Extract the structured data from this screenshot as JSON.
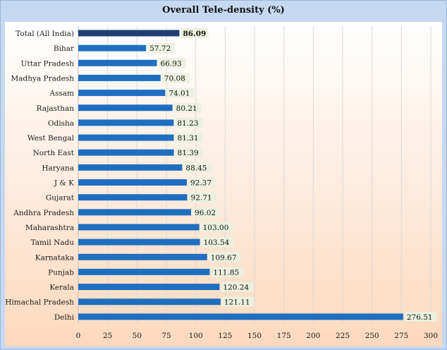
{
  "chart_data": {
    "type": "bar",
    "orientation": "horizontal",
    "title": "Overall Tele-density (%)",
    "xlabel": "",
    "ylabel": "",
    "xlim": [
      0,
      300
    ],
    "xticks": [
      "0",
      "25",
      "50",
      "75",
      "100",
      "125",
      "150",
      "175",
      "200",
      "225",
      "250",
      "275",
      "300"
    ],
    "grid": "vertical",
    "legend": "none",
    "categories": [
      "Total (All India)",
      "Bihar",
      "Uttar Pradesh",
      "Madhya Pradesh",
      "Assam",
      "Rajasthan",
      "Odisha",
      "West Bengal",
      "North East",
      "Haryana",
      "J & K",
      "Gujarat",
      "Andhra Pradesh",
      "Maharashtra",
      "Tamil Nadu",
      "Karnataka",
      "Punjab",
      "Kerala",
      "Himachal Pradesh",
      "Delhi"
    ],
    "values": [
      86.09,
      57.72,
      66.93,
      70.08,
      74.01,
      80.21,
      81.23,
      81.31,
      81.39,
      88.45,
      92.37,
      92.71,
      96.02,
      103.0,
      103.54,
      109.67,
      111.85,
      120.24,
      121.11,
      276.51
    ],
    "data_labels": [
      "86.09",
      "57.72",
      "66.93",
      "70.08",
      "74.01",
      "80.21",
      "81.23",
      "81.31",
      "81.39",
      "88.45",
      "92.37",
      "92.71",
      "96.02",
      "103.00",
      "103.54",
      "109.67",
      "111.85",
      "120.24",
      "121.11",
      "276.51"
    ],
    "highlighted_category": "Total (All India)",
    "colors": {
      "bar": "#1f6fc0",
      "bar_highlight": "#1f3f6e",
      "label_bg": "#ebf1de",
      "grid": "#d9d9d9",
      "background": "#c5d9f1",
      "plot_top": "#ffffff",
      "plot_bottom": "#fcd9be"
    }
  }
}
